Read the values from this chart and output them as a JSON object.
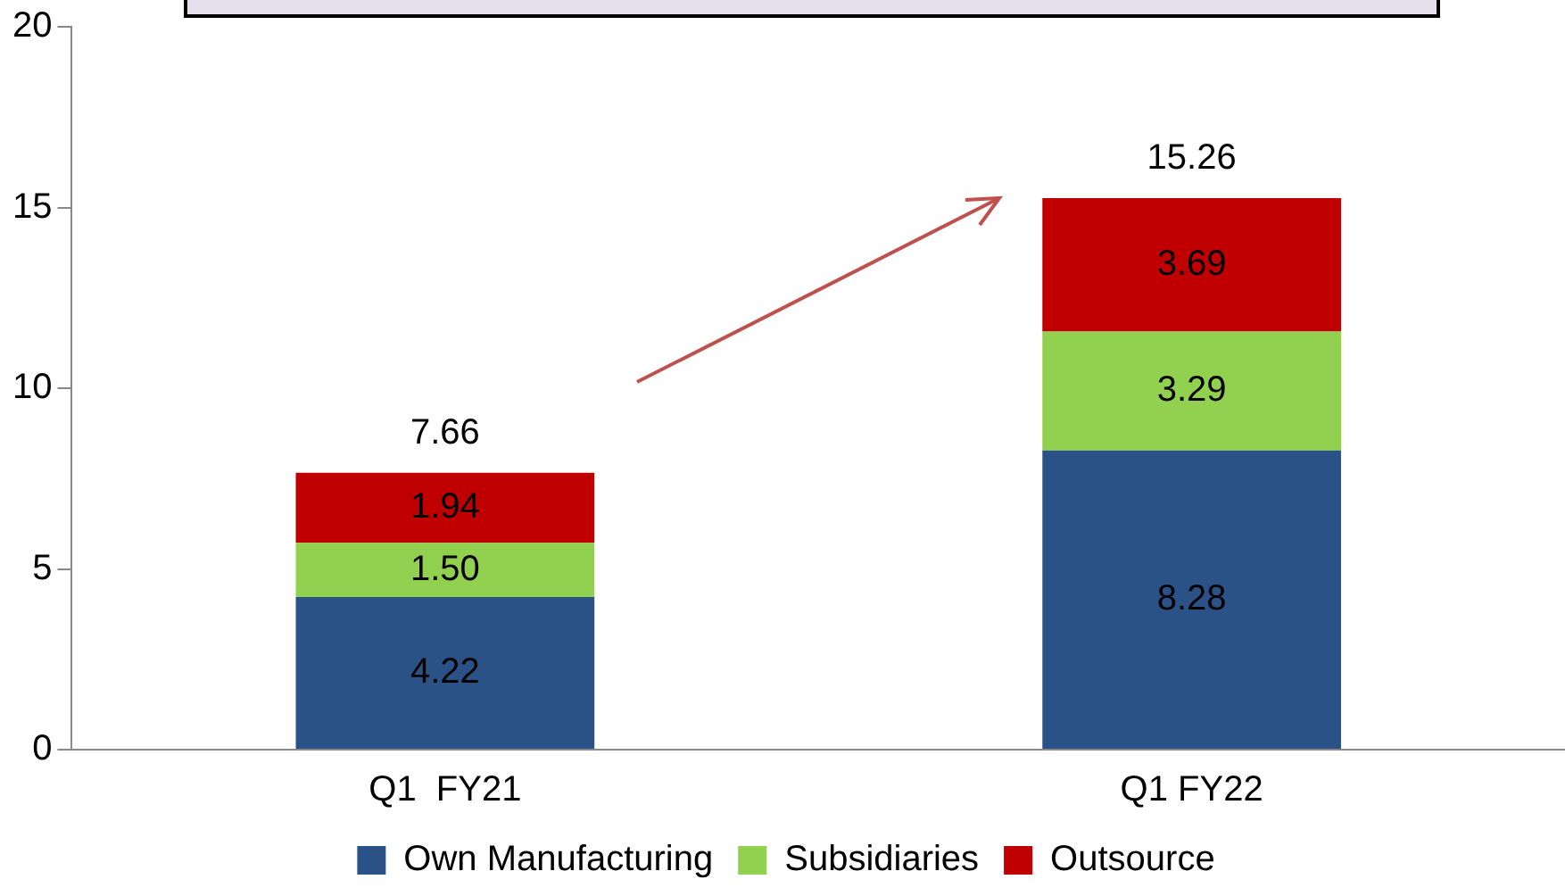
{
  "chart_data": {
    "type": "bar",
    "stacked": true,
    "categories": [
      "Q1  FY21",
      "Q1 FY22"
    ],
    "series": [
      {
        "name": "Own Manufacturing",
        "color": "#2b5287",
        "values": [
          4.22,
          8.28
        ],
        "value_labels": [
          "4.22",
          "8.28"
        ]
      },
      {
        "name": "Subsidiaries",
        "color": "#92d050",
        "values": [
          1.5,
          3.29
        ],
        "value_labels": [
          "1.50",
          "3.29"
        ]
      },
      {
        "name": "Outsource",
        "color": "#c00000",
        "values": [
          1.94,
          3.69
        ],
        "value_labels": [
          "1.94",
          "3.69"
        ]
      }
    ],
    "ylim": [
      0,
      20
    ],
    "yticks": [
      0,
      5,
      10,
      15,
      20
    ],
    "grid": false,
    "legend": "bottom",
    "totals": [
      "7.66",
      "15.26"
    ]
  }
}
